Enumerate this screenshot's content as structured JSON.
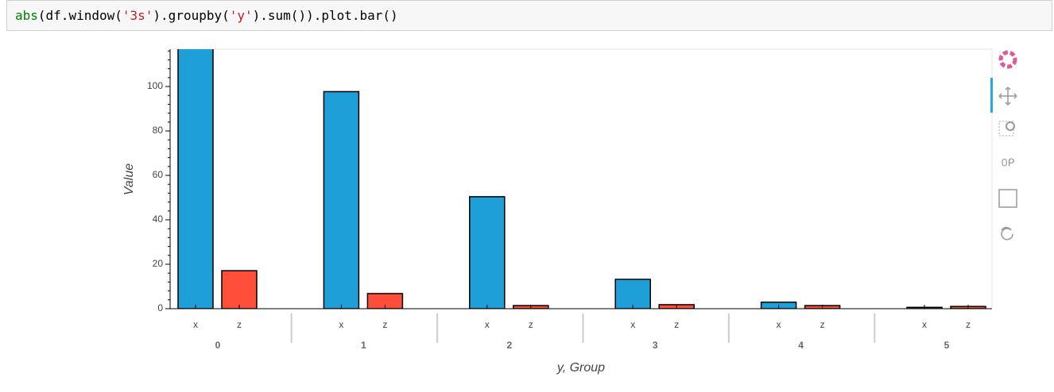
{
  "code": [
    "abs",
    "(df.window(",
    "'3s'",
    ").groupby(",
    "'y'",
    ").sum()).plot.bar()"
  ],
  "chart_data": {
    "type": "bar",
    "categories": [
      "0",
      "1",
      "2",
      "3",
      "4",
      "5"
    ],
    "series": [
      {
        "name": "x",
        "color": "#1f9fd8",
        "values": [
          120,
          97.7,
          50.4,
          13.2,
          2.9,
          0.6
        ]
      },
      {
        "name": "z",
        "color": "#ff4f3a",
        "values": [
          17.1,
          6.8,
          1.4,
          1.8,
          1.4,
          1.0
        ]
      }
    ],
    "ylim": [
      0,
      116.8
    ],
    "yticks": [
      0,
      20,
      40,
      60,
      80,
      100
    ],
    "ylabel": "Value",
    "xlabel": "y, Group"
  }
}
